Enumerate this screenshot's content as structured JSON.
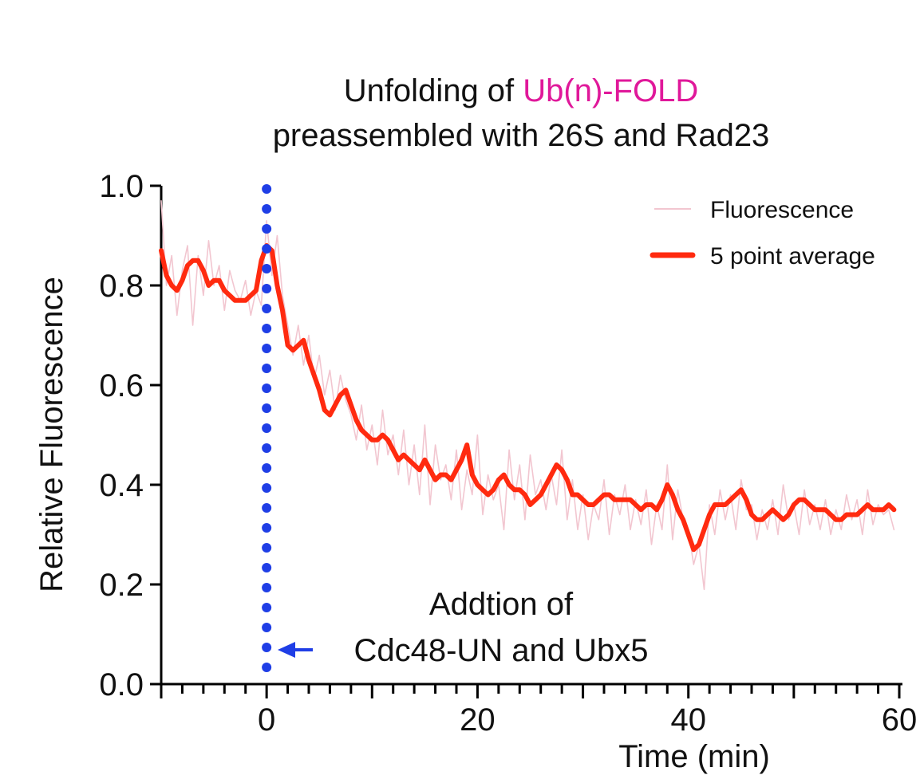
{
  "chart_data": {
    "type": "line",
    "title": {
      "line1_prefix": "Unfolding of ",
      "line1_highlight": "Ub(n)-FOLD",
      "line2": "preassembled with 26S and Rad23"
    },
    "xlabel": "Time (min)",
    "ylabel": "Relative Fluorescence",
    "xlim": [
      -10,
      60
    ],
    "ylim": [
      0,
      1.0
    ],
    "x_ticks": [
      0,
      20,
      40,
      60
    ],
    "x_tick_labels": [
      "0",
      "20",
      "40",
      "60"
    ],
    "y_ticks": [
      0,
      0.2,
      0.4,
      0.6,
      0.8,
      1.0
    ],
    "y_tick_labels": [
      "0.0",
      "0.2",
      "0.4",
      "0.6",
      "0.8",
      "1.0"
    ],
    "grid": false,
    "legend": {
      "placement": "top-right",
      "entries": [
        "Fluorescence",
        "5 point average"
      ]
    },
    "annotation": {
      "line1": "Addtion of",
      "line2": "Cdc48-UN and Ubx5",
      "x": 0
    },
    "series": [
      {
        "name": "Fluorescence",
        "color": "#f2c6d0",
        "x": [
          -10,
          -9.5,
          -9,
          -8.5,
          -8,
          -7.5,
          -7,
          -6.5,
          -6,
          -5.5,
          -5,
          -4.5,
          -4,
          -3.5,
          -3,
          -2.5,
          -2,
          -1.5,
          -1,
          -0.5,
          0,
          0.5,
          1,
          1.5,
          2,
          2.5,
          3,
          3.5,
          4,
          4.5,
          5,
          5.5,
          6,
          6.5,
          7,
          7.5,
          8,
          8.5,
          9,
          9.5,
          10,
          10.5,
          11,
          11.5,
          12,
          12.5,
          13,
          13.5,
          14,
          14.5,
          15,
          15.5,
          16,
          16.5,
          17,
          17.5,
          18,
          18.5,
          19,
          19.5,
          20,
          20.5,
          21,
          21.5,
          22,
          22.5,
          23,
          23.5,
          24,
          24.5,
          25,
          25.5,
          26,
          26.5,
          27,
          27.5,
          28,
          28.5,
          29,
          29.5,
          30,
          30.5,
          31,
          31.5,
          32,
          32.5,
          33,
          33.5,
          34,
          34.5,
          35,
          35.5,
          36,
          36.5,
          37,
          37.5,
          38,
          38.5,
          39,
          39.5,
          40,
          40.5,
          41,
          41.5,
          42,
          42.5,
          43,
          43.5,
          44,
          44.5,
          45,
          45.5,
          46,
          46.5,
          47,
          47.5,
          48,
          48.5,
          49,
          49.5,
          50,
          50.5,
          51,
          51.5,
          52,
          52.5,
          53,
          53.5,
          54,
          54.5,
          55,
          55.5,
          56,
          56.5,
          57,
          57.5,
          58,
          58.5,
          59,
          59.5
        ],
        "y": [
          0.97,
          0.8,
          0.86,
          0.74,
          0.83,
          0.88,
          0.72,
          0.86,
          0.78,
          0.89,
          0.8,
          0.84,
          0.75,
          0.83,
          0.79,
          0.77,
          0.81,
          0.74,
          0.79,
          0.76,
          0.93,
          0.82,
          0.9,
          0.78,
          0.72,
          0.66,
          0.72,
          0.64,
          0.7,
          0.61,
          0.66,
          0.58,
          0.63,
          0.55,
          0.62,
          0.57,
          0.54,
          0.49,
          0.56,
          0.47,
          0.52,
          0.44,
          0.55,
          0.46,
          0.5,
          0.42,
          0.51,
          0.4,
          0.48,
          0.38,
          0.52,
          0.36,
          0.48,
          0.41,
          0.44,
          0.37,
          0.47,
          0.35,
          0.43,
          0.38,
          0.5,
          0.34,
          0.42,
          0.37,
          0.4,
          0.31,
          0.47,
          0.37,
          0.44,
          0.33,
          0.46,
          0.38,
          0.41,
          0.35,
          0.42,
          0.36,
          0.47,
          0.33,
          0.41,
          0.31,
          0.38,
          0.29,
          0.36,
          0.33,
          0.41,
          0.3,
          0.38,
          0.34,
          0.4,
          0.31,
          0.37,
          0.32,
          0.39,
          0.28,
          0.36,
          0.31,
          0.44,
          0.29,
          0.39,
          0.33,
          0.31,
          0.24,
          0.28,
          0.19,
          0.36,
          0.3,
          0.39,
          0.33,
          0.38,
          0.31,
          0.41,
          0.35,
          0.36,
          0.29,
          0.35,
          0.31,
          0.37,
          0.3,
          0.4,
          0.33,
          0.36,
          0.3,
          0.39,
          0.32,
          0.36,
          0.31,
          0.37,
          0.3,
          0.35,
          0.31,
          0.38,
          0.33,
          0.37,
          0.3,
          0.39,
          0.32,
          0.36,
          0.34,
          0.35,
          0.31
        ]
      },
      {
        "name": "5 point average",
        "color": "#ff2a0f",
        "x": [
          -10,
          -9.5,
          -9,
          -8.5,
          -8,
          -7.5,
          -7,
          -6.5,
          -6,
          -5.5,
          -5,
          -4.5,
          -4,
          -3.5,
          -3,
          -2.5,
          -2,
          -1.5,
          -1,
          -0.5,
          0,
          0.5,
          1,
          1.5,
          2,
          2.5,
          3,
          3.5,
          4,
          4.5,
          5,
          5.5,
          6,
          6.5,
          7,
          7.5,
          8,
          8.5,
          9,
          9.5,
          10,
          10.5,
          11,
          11.5,
          12,
          12.5,
          13,
          13.5,
          14,
          14.5,
          15,
          15.5,
          16,
          16.5,
          17,
          17.5,
          18,
          18.5,
          19,
          19.5,
          20,
          20.5,
          21,
          21.5,
          22,
          22.5,
          23,
          23.5,
          24,
          24.5,
          25,
          25.5,
          26,
          26.5,
          27,
          27.5,
          28,
          28.5,
          29,
          29.5,
          30,
          30.5,
          31,
          31.5,
          32,
          32.5,
          33,
          33.5,
          34,
          34.5,
          35,
          35.5,
          36,
          36.5,
          37,
          37.5,
          38,
          38.5,
          39,
          39.5,
          40,
          40.5,
          41,
          41.5,
          42,
          42.5,
          43,
          43.5,
          44,
          44.5,
          45,
          45.5,
          46,
          46.5,
          47,
          47.5,
          48,
          48.5,
          49,
          49.5,
          50,
          50.5,
          51,
          51.5,
          52,
          52.5,
          53,
          53.5,
          54,
          54.5,
          55,
          55.5,
          56,
          56.5,
          57,
          57.5,
          58,
          58.5,
          59,
          59.5
        ],
        "y": [
          0.87,
          0.82,
          0.8,
          0.79,
          0.81,
          0.84,
          0.85,
          0.85,
          0.83,
          0.8,
          0.81,
          0.81,
          0.79,
          0.78,
          0.77,
          0.77,
          0.77,
          0.78,
          0.79,
          0.85,
          0.88,
          0.87,
          0.8,
          0.75,
          0.68,
          0.67,
          0.68,
          0.69,
          0.65,
          0.62,
          0.59,
          0.55,
          0.54,
          0.56,
          0.58,
          0.59,
          0.56,
          0.53,
          0.51,
          0.5,
          0.49,
          0.49,
          0.5,
          0.49,
          0.47,
          0.45,
          0.46,
          0.45,
          0.44,
          0.43,
          0.45,
          0.43,
          0.41,
          0.42,
          0.42,
          0.41,
          0.43,
          0.45,
          0.48,
          0.42,
          0.4,
          0.39,
          0.38,
          0.39,
          0.41,
          0.42,
          0.4,
          0.39,
          0.39,
          0.38,
          0.36,
          0.37,
          0.38,
          0.4,
          0.42,
          0.44,
          0.43,
          0.41,
          0.38,
          0.38,
          0.37,
          0.36,
          0.36,
          0.37,
          0.38,
          0.38,
          0.37,
          0.37,
          0.37,
          0.37,
          0.36,
          0.35,
          0.36,
          0.36,
          0.35,
          0.37,
          0.4,
          0.38,
          0.35,
          0.33,
          0.3,
          0.27,
          0.28,
          0.31,
          0.34,
          0.36,
          0.36,
          0.36,
          0.37,
          0.38,
          0.39,
          0.37,
          0.34,
          0.33,
          0.33,
          0.34,
          0.35,
          0.34,
          0.33,
          0.34,
          0.36,
          0.37,
          0.37,
          0.36,
          0.35,
          0.35,
          0.35,
          0.34,
          0.33,
          0.33,
          0.34,
          0.34,
          0.34,
          0.35,
          0.36,
          0.35,
          0.35,
          0.35,
          0.36,
          0.35
        ]
      }
    ]
  },
  "colors": {
    "title_text": "#111111",
    "title_highlight": "#e0189a",
    "axis": "#000000",
    "marker_line": "#1f3ee6",
    "raw_series": "#f2c6d0",
    "avg_series": "#ff2a0f"
  }
}
